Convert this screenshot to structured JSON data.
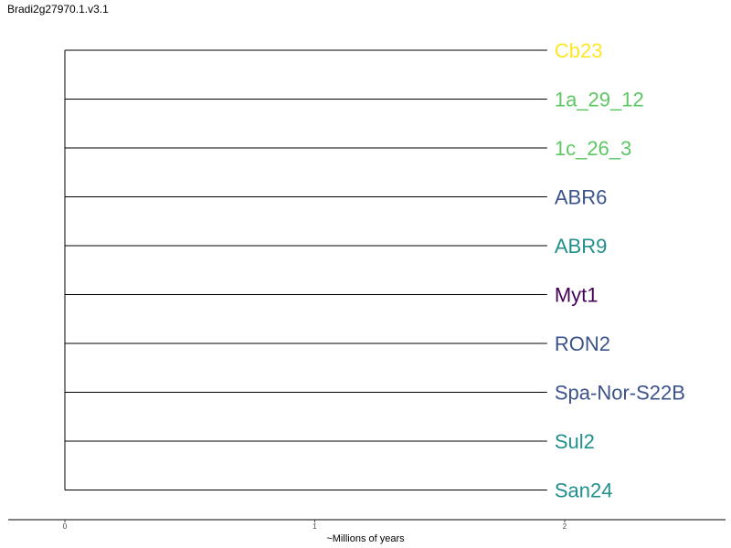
{
  "chart_data": {
    "type": "phylogenetic-tree",
    "title": "Bradi2g27970.1.v3.1",
    "xlabel": "~Millions of years",
    "xlim": [
      0,
      2.7
    ],
    "xticks": [
      0,
      1,
      2
    ],
    "xtick_labels": [
      "0",
      "1",
      "2"
    ],
    "root_x": 0,
    "tips": [
      {
        "label": "Cb23",
        "branch_end": 1.93,
        "color": "#FDE725"
      },
      {
        "label": "1a_29_12",
        "branch_end": 1.93,
        "color": "#5DC863"
      },
      {
        "label": "1c_26_3",
        "branch_end": 1.93,
        "color": "#5DC863"
      },
      {
        "label": "ABR6",
        "branch_end": 1.93,
        "color": "#3B528B"
      },
      {
        "label": "ABR9",
        "branch_end": 1.93,
        "color": "#21908C"
      },
      {
        "label": "Myt1",
        "branch_end": 1.93,
        "color": "#440154"
      },
      {
        "label": "RON2",
        "branch_end": 1.93,
        "color": "#3B528B"
      },
      {
        "label": "Spa-Nor-S22B",
        "branch_end": 1.93,
        "color": "#3B528B"
      },
      {
        "label": "Sul2",
        "branch_end": 1.93,
        "color": "#21908C"
      },
      {
        "label": "San24",
        "branch_end": 1.93,
        "color": "#21908C"
      }
    ]
  }
}
